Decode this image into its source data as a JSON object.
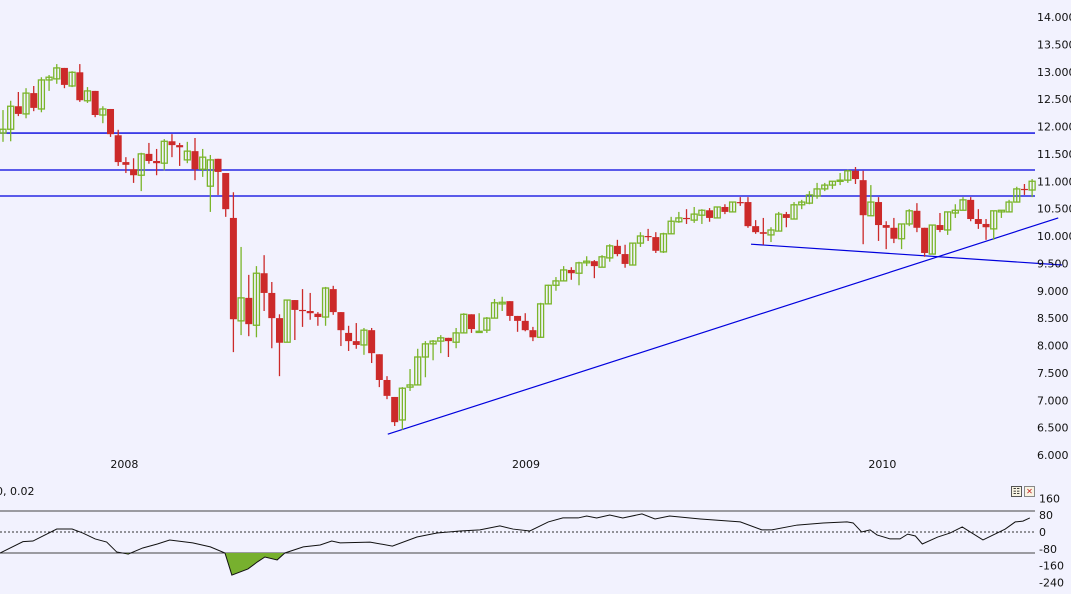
{
  "colors": {
    "up": "#7ab52a",
    "down": "#cc2a2a",
    "lines": "#0000dd",
    "background": "#f2f2fe",
    "indicator_fill": "#77b02e",
    "indicator_line": "#111111"
  },
  "chart_data": [
    {
      "type": "candlestick",
      "title": "",
      "x_ticks": [
        {
          "label": "2008",
          "bar": 15.8
        },
        {
          "label": "2009",
          "bar": 68.1
        },
        {
          "label": "2010",
          "bar": 114.5
        }
      ],
      "ylim": [
        6000,
        14000
      ],
      "y_ticks": [
        "14.000",
        "13.500",
        "13.000",
        "12.500",
        "12.000",
        "11.500",
        "11.000",
        "10.500",
        "10.000",
        "9.500",
        "9.000",
        "8.500",
        "8.000",
        "7.500",
        "7.000",
        "6.500",
        "6.000"
      ],
      "y_tick_values": [
        14000,
        13500,
        13000,
        12500,
        12000,
        11500,
        11000,
        10500,
        10000,
        9500,
        9000,
        8500,
        8000,
        7500,
        7000,
        6500,
        6000
      ],
      "grid": false,
      "ohlc": [
        [
          11880,
          12300,
          11720,
          11950
        ],
        [
          11950,
          12470,
          11730,
          12370
        ],
        [
          12370,
          12630,
          12190,
          12230
        ],
        [
          12230,
          12700,
          12150,
          12610
        ],
        [
          12610,
          12740,
          12280,
          12340
        ],
        [
          12320,
          12900,
          12260,
          12850
        ],
        [
          12850,
          12940,
          12650,
          12900
        ],
        [
          12870,
          13140,
          12780,
          13070
        ],
        [
          13070,
          13070,
          12700,
          12760
        ],
        [
          12740,
          13010,
          12720,
          12990
        ],
        [
          12990,
          13140,
          12450,
          12480
        ],
        [
          12470,
          12720,
          12430,
          12650
        ],
        [
          12650,
          12650,
          12170,
          12210
        ],
        [
          12210,
          12370,
          12060,
          12320
        ],
        [
          12320,
          12320,
          11810,
          11860
        ],
        [
          11840,
          11940,
          11280,
          11350
        ],
        [
          11350,
          11440,
          11150,
          11300
        ],
        [
          11220,
          11420,
          10970,
          11110
        ],
        [
          11110,
          11520,
          10820,
          11500
        ],
        [
          11500,
          11700,
          11320,
          11370
        ],
        [
          11370,
          11590,
          11110,
          11330
        ],
        [
          11330,
          11770,
          11200,
          11730
        ],
        [
          11730,
          11860,
          11440,
          11660
        ],
        [
          11660,
          11700,
          11280,
          11620
        ],
        [
          11390,
          11720,
          11330,
          11550
        ],
        [
          11550,
          11790,
          11020,
          11220
        ],
        [
          11220,
          11590,
          11080,
          11440
        ],
        [
          10910,
          11480,
          10440,
          11390
        ],
        [
          11410,
          11410,
          10750,
          11170
        ],
        [
          11150,
          11150,
          10350,
          10490
        ],
        [
          10330,
          10800,
          7880,
          8480
        ],
        [
          8450,
          9800,
          8190,
          8870
        ],
        [
          8870,
          9290,
          8170,
          8390
        ],
        [
          8370,
          9450,
          8150,
          9320
        ],
        [
          9320,
          9650,
          8630,
          8960
        ],
        [
          8960,
          9160,
          7950,
          8500
        ],
        [
          8500,
          8570,
          7440,
          8050
        ],
        [
          8060,
          8830,
          8060,
          8830
        ],
        [
          8830,
          8830,
          8100,
          8650
        ],
        [
          8650,
          9030,
          8340,
          8630
        ],
        [
          8630,
          8960,
          8470,
          8590
        ],
        [
          8580,
          8610,
          8360,
          8520
        ],
        [
          8520,
          9070,
          8360,
          9050
        ],
        [
          9030,
          9090,
          8560,
          8610
        ],
        [
          8610,
          8610,
          7990,
          8280
        ],
        [
          8230,
          8360,
          7900,
          8080
        ],
        [
          8080,
          8410,
          7940,
          8010
        ],
        [
          8010,
          8320,
          7830,
          8280
        ],
        [
          8280,
          8320,
          7680,
          7860
        ],
        [
          7840,
          7840,
          7240,
          7370
        ],
        [
          7370,
          7440,
          7020,
          7080
        ],
        [
          7060,
          7060,
          6530,
          6600
        ],
        [
          6640,
          7240,
          6460,
          7220
        ],
        [
          7240,
          7570,
          7170,
          7280
        ],
        [
          7280,
          7940,
          7280,
          7790
        ],
        [
          7790,
          8080,
          7420,
          8030
        ],
        [
          8030,
          8100,
          7730,
          8080
        ],
        [
          8080,
          8190,
          7860,
          8140
        ],
        [
          8140,
          8140,
          7790,
          8080
        ],
        [
          8060,
          8320,
          7950,
          8230
        ],
        [
          8230,
          8590,
          8230,
          8570
        ],
        [
          8570,
          8570,
          8230,
          8300
        ],
        [
          8250,
          8590,
          8230,
          8260
        ],
        [
          8280,
          8520,
          8230,
          8500
        ],
        [
          8500,
          8850,
          8500,
          8780
        ],
        [
          8760,
          8890,
          8630,
          8790
        ],
        [
          8810,
          8810,
          8450,
          8540
        ],
        [
          8540,
          8540,
          8250,
          8450
        ],
        [
          8450,
          8590,
          8260,
          8280
        ],
        [
          8280,
          8340,
          8080,
          8150
        ],
        [
          8150,
          8780,
          8140,
          8760
        ],
        [
          8760,
          9110,
          8760,
          9100
        ],
        [
          9100,
          9250,
          9000,
          9180
        ],
        [
          9180,
          9450,
          9180,
          9380
        ],
        [
          9380,
          9430,
          9200,
          9320
        ],
        [
          9320,
          9530,
          9100,
          9510
        ],
        [
          9510,
          9630,
          9450,
          9540
        ],
        [
          9540,
          9560,
          9230,
          9450
        ],
        [
          9430,
          9650,
          9430,
          9620
        ],
        [
          9600,
          9850,
          9530,
          9820
        ],
        [
          9820,
          9930,
          9630,
          9670
        ],
        [
          9670,
          9840,
          9420,
          9490
        ],
        [
          9470,
          9870,
          9470,
          9870
        ],
        [
          9870,
          10070,
          9800,
          10000
        ],
        [
          10000,
          10130,
          9910,
          9980
        ],
        [
          9980,
          10070,
          9690,
          9730
        ],
        [
          9710,
          10060,
          9690,
          10040
        ],
        [
          10040,
          10350,
          10040,
          10270
        ],
        [
          10260,
          10440,
          10240,
          10330
        ],
        [
          10330,
          10490,
          10220,
          10310
        ],
        [
          10290,
          10530,
          10240,
          10400
        ],
        [
          10380,
          10490,
          10220,
          10470
        ],
        [
          10470,
          10510,
          10260,
          10330
        ],
        [
          10330,
          10530,
          10330,
          10530
        ],
        [
          10530,
          10580,
          10400,
          10440
        ],
        [
          10440,
          10620,
          10440,
          10620
        ],
        [
          10620,
          10710,
          10550,
          10600
        ],
        [
          10620,
          10710,
          10150,
          10180
        ],
        [
          10180,
          10290,
          10040,
          10070
        ],
        [
          10070,
          10330,
          9840,
          10040
        ],
        [
          10020,
          10160,
          9890,
          10110
        ],
        [
          10090,
          10440,
          10090,
          10400
        ],
        [
          10400,
          10440,
          10160,
          10330
        ],
        [
          10310,
          10620,
          10310,
          10570
        ],
        [
          10570,
          10660,
          10490,
          10620
        ],
        [
          10600,
          10820,
          10580,
          10750
        ],
        [
          10730,
          10970,
          10680,
          10860
        ],
        [
          10860,
          10970,
          10820,
          10930
        ],
        [
          10930,
          11000,
          10860,
          11000
        ],
        [
          11000,
          11150,
          10930,
          11020
        ],
        [
          11020,
          11210,
          10970,
          11190
        ],
        [
          11190,
          11260,
          10950,
          11040
        ],
        [
          11020,
          11190,
          9850,
          10380
        ],
        [
          10370,
          10930,
          10370,
          10620
        ],
        [
          10620,
          10710,
          9910,
          10200
        ],
        [
          10200,
          10270,
          9760,
          10150
        ],
        [
          10150,
          10330,
          9870,
          9950
        ],
        [
          9950,
          10220,
          9760,
          10220
        ],
        [
          10220,
          10490,
          10180,
          10460
        ],
        [
          10460,
          10600,
          10070,
          10150
        ],
        [
          10150,
          10150,
          9620,
          9690
        ],
        [
          9670,
          10200,
          9670,
          10200
        ],
        [
          10200,
          10420,
          10070,
          10110
        ],
        [
          10110,
          10440,
          10020,
          10440
        ],
        [
          10420,
          10580,
          10330,
          10470
        ],
        [
          10470,
          10710,
          10470,
          10660
        ],
        [
          10660,
          10710,
          10270,
          10310
        ],
        [
          10310,
          10490,
          10130,
          10220
        ],
        [
          10220,
          10310,
          9930,
          10160
        ],
        [
          10130,
          10460,
          9930,
          10460
        ],
        [
          10440,
          10470,
          10330,
          10470
        ],
        [
          10440,
          10660,
          10440,
          10620
        ],
        [
          10620,
          10900,
          10620,
          10860
        ],
        [
          10860,
          10950,
          10750,
          10840
        ],
        [
          10840,
          11040,
          10710,
          11000
        ]
      ],
      "horizontal_lines": [
        11880,
        11205,
        10730
      ],
      "trend_lines": [
        {
          "from": {
            "bar": 50.1,
            "price": 6380
          },
          "to": {
            "bar": 137.4,
            "price": 10330
          }
        },
        {
          "from": {
            "bar": 97.4,
            "price": 9850
          },
          "to": {
            "bar": 137.9,
            "price": 9470
          }
        }
      ]
    },
    {
      "type": "line",
      "label": "0, 0.02",
      "ylim": [
        -240,
        160
      ],
      "y_ticks": [
        "160",
        "80",
        "0",
        "-80",
        "-160",
        "-240"
      ],
      "y_tick_values": [
        160,
        80,
        0,
        -80,
        -160,
        -240
      ],
      "levels": {
        "upper": 100,
        "zero": 0,
        "lower": -100
      },
      "fill_below_lower": true,
      "bar": [
        -0.4,
        2.6,
        3.9,
        7.0,
        9.0,
        10.4,
        12.0,
        13.5,
        14.8,
        16.3,
        18.2,
        20.1,
        21.7,
        24.7,
        27.0,
        28.9,
        29.8,
        31.9,
        33.1,
        34.1,
        35.7,
        36.7,
        39.1,
        41.3,
        42.8,
        43.9,
        47.8,
        50.7,
        53.9,
        56.5,
        59.5,
        62.1,
        64.7,
        66.4,
        68.6,
        71.0,
        72.9,
        74.9,
        76.0,
        77.3,
        79.0,
        80.7,
        83.2,
        84.9,
        86.8,
        90.8,
        96.0,
        98.8,
        100.1,
        103.4,
        106.8,
        109.9,
        110.7,
        111.8,
        112.9,
        113.8,
        115.5,
        116.8,
        117.8,
        118.8,
        119.7,
        121.7,
        123.3,
        124.9,
        127.6,
        130.5,
        131.8,
        132.8,
        133.7
      ],
      "values": [
        -100,
        -46,
        -43,
        14,
        14,
        -5,
        -33,
        -48,
        -95,
        -105,
        -76,
        -57,
        -38,
        -52,
        -71,
        -100,
        -205,
        -176,
        -143,
        -119,
        -133,
        -100,
        -71,
        -62,
        -43,
        -52,
        -48,
        -67,
        -24,
        -5,
        5,
        10,
        29,
        14,
        5,
        48,
        67,
        67,
        76,
        67,
        81,
        67,
        86,
        62,
        76,
        62,
        48,
        10,
        10,
        33,
        43,
        48,
        43,
        0,
        10,
        -14,
        -33,
        -33,
        -10,
        -19,
        -57,
        -24,
        -5,
        24,
        -38,
        14,
        48,
        52,
        67
      ]
    }
  ],
  "panel_buttons": {
    "properties": "properties-icon",
    "close": "close-icon",
    "close_glyph": "✕",
    "properties_glyph": "☷"
  }
}
